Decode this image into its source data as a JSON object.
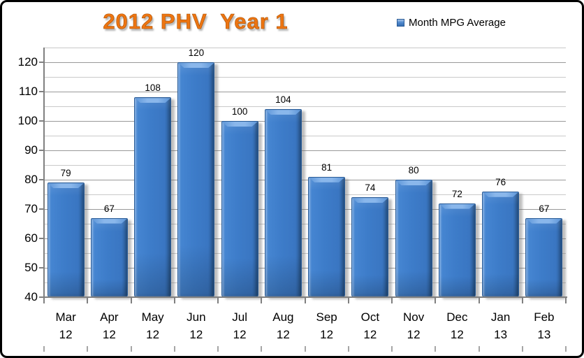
{
  "chart_data": {
    "type": "bar",
    "title": "2012 PHV  Year 1",
    "legend": {
      "label": "Month MPG Average",
      "position": "top-right"
    },
    "categories": [
      "Mar 12",
      "Apr 12",
      "May 12",
      "Jun 12",
      "Jul 12",
      "Aug 12",
      "Sep 12",
      "Oct 12",
      "Nov 12",
      "Dec 12",
      "Jan 13",
      "Feb 13"
    ],
    "values": [
      79,
      67,
      108,
      120,
      100,
      104,
      81,
      74,
      80,
      72,
      76,
      67
    ],
    "data_labels": true,
    "xlabel": "",
    "ylabel": "",
    "ylim": [
      40,
      125
    ],
    "y_major_unit": 10,
    "y_minor_unit": 5,
    "y_tick_labels": [
      "40",
      "50",
      "60",
      "70",
      "80",
      "90",
      "100",
      "110",
      "120"
    ],
    "grid": "horizontal-major-and-minor",
    "colors": {
      "bar_fill": "#3D7CC9",
      "bar_border": "#2A5C97",
      "title": "#ED7512",
      "major_gridline": "#999999",
      "minor_gridline": "#C9C9C9",
      "axis": "#808080",
      "text": "#000000",
      "frame": "#000000",
      "background": "#FFFFFF"
    }
  }
}
